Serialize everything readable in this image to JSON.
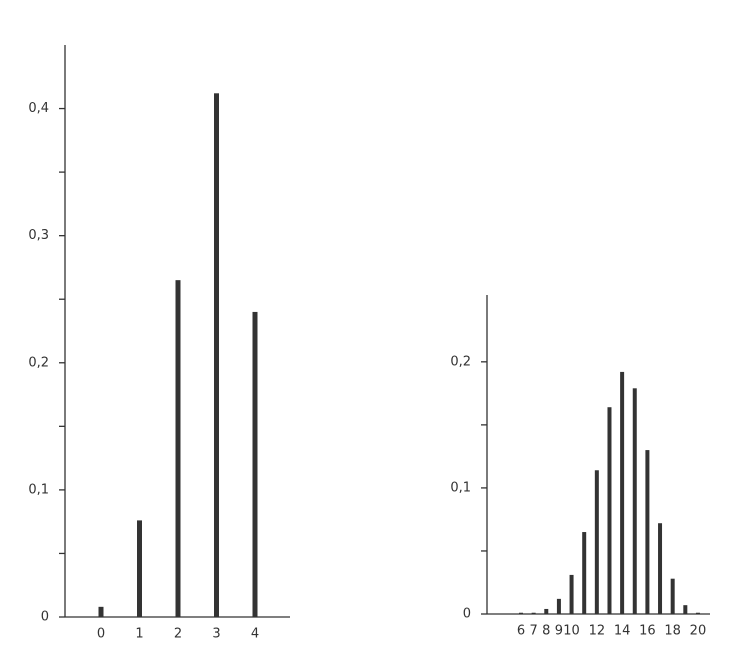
{
  "chart_data": [
    {
      "type": "bar",
      "color": "#333333",
      "categories": [
        "0",
        "1",
        "2",
        "3",
        "4"
      ],
      "values": [
        0.008,
        0.076,
        0.265,
        0.412,
        0.24
      ],
      "ylim": [
        0,
        0.45
      ],
      "yticks": [
        {
          "value": 0,
          "label": "0"
        },
        {
          "value": 0.1,
          "label": "0,1"
        },
        {
          "value": 0.2,
          "label": "0,2"
        },
        {
          "value": 0.3,
          "label": "0,3"
        },
        {
          "value": 0.4,
          "label": "0,4"
        }
      ],
      "minor_yticks": [
        0.05,
        0.15,
        0.25,
        0.35
      ]
    },
    {
      "type": "bar",
      "color": "#333333",
      "categories": [
        "6",
        "7",
        "8",
        "9",
        "10",
        null,
        "12",
        null,
        "14",
        null,
        "16",
        null,
        "18",
        null,
        "20"
      ],
      "values": [
        0.001,
        0.001,
        0.004,
        0.012,
        0.031,
        0.065,
        0.114,
        0.164,
        0.192,
        0.179,
        0.13,
        0.072,
        0.028,
        0.007,
        0.001
      ],
      "ylim": [
        0,
        0.253
      ],
      "yticks": [
        {
          "value": 0,
          "label": "0"
        },
        {
          "value": 0.1,
          "label": "0,1"
        },
        {
          "value": 0.2,
          "label": "0,2"
        }
      ],
      "minor_yticks": [
        0.05,
        0.15
      ]
    }
  ]
}
